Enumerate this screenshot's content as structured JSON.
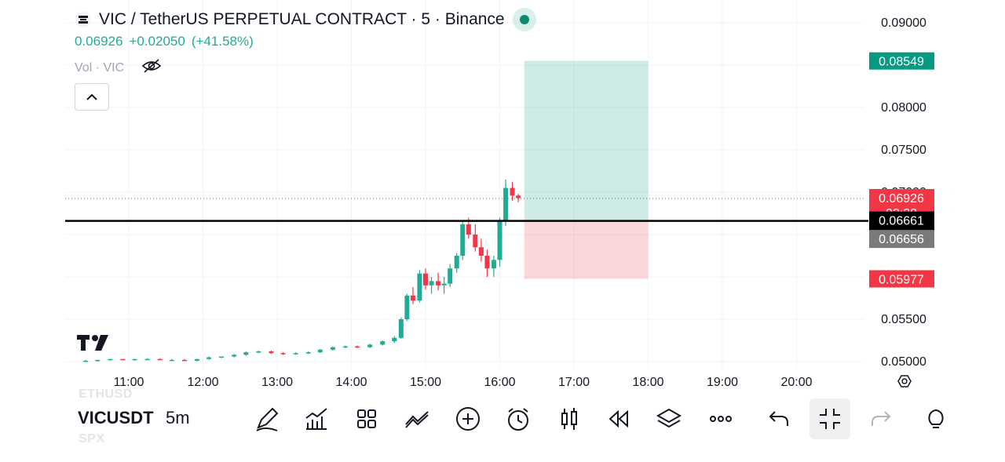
{
  "header": {
    "title": "VIC / TetherUS PERPETUAL CONTRACT · 5 · Binance",
    "last_price": "0.06926",
    "change": "+0.02050",
    "change_pct": "(+41.58%)",
    "volume_label": "Vol · VIC",
    "logo_icon": "exchange-logo-icon",
    "status_icon": "market-open-dot-icon"
  },
  "colors": {
    "up": "#22ab94",
    "down": "#f23645",
    "target": "#089981",
    "stop": "#f23645",
    "entry": "#000000"
  },
  "price_axis": {
    "ticks": [
      "0.09000",
      "0.08000",
      "0.07500",
      "0.05500",
      "0.05000"
    ],
    "hidden_tick": "0.07000",
    "labels": {
      "target": "0.08549",
      "last": "0.06926",
      "countdown": "02:38",
      "entry": "0.06661",
      "crosshair": "0.06656",
      "stop": "0.05977"
    }
  },
  "time_axis": {
    "ticks": [
      "11:00",
      "12:00",
      "13:00",
      "14:00",
      "15:00",
      "16:00",
      "17:00",
      "18:00",
      "19:00",
      "20:00"
    ],
    "settings_icon": "axis-settings-icon"
  },
  "chart_data": {
    "type": "candlestick",
    "interval": "5m",
    "ylim": [
      0.05,
      0.09
    ],
    "candles": [
      [
        10.42,
        0.0501,
        0.0502,
        0.05,
        0.0501
      ],
      [
        10.58,
        0.0501,
        0.0502,
        0.05,
        0.0502
      ],
      [
        10.75,
        0.0502,
        0.0503,
        0.0501,
        0.0503
      ],
      [
        10.92,
        0.0503,
        0.0503,
        0.0502,
        0.0502
      ],
      [
        11.08,
        0.0502,
        0.0503,
        0.0501,
        0.0503
      ],
      [
        11.25,
        0.0503,
        0.0504,
        0.0502,
        0.0503
      ],
      [
        11.42,
        0.0503,
        0.0504,
        0.0502,
        0.0502
      ],
      [
        11.58,
        0.0502,
        0.0503,
        0.0501,
        0.0502
      ],
      [
        11.75,
        0.0502,
        0.0503,
        0.0501,
        0.0501
      ],
      [
        11.92,
        0.0501,
        0.0503,
        0.05,
        0.0503
      ],
      [
        12.08,
        0.0503,
        0.0506,
        0.0502,
        0.0505
      ],
      [
        12.25,
        0.0505,
        0.0506,
        0.0504,
        0.0506
      ],
      [
        12.42,
        0.0506,
        0.0509,
        0.0505,
        0.0508
      ],
      [
        12.58,
        0.0508,
        0.0512,
        0.0507,
        0.0511
      ],
      [
        12.75,
        0.0511,
        0.0513,
        0.051,
        0.0512
      ],
      [
        12.92,
        0.0512,
        0.0513,
        0.0509,
        0.051
      ],
      [
        13.08,
        0.051,
        0.0511,
        0.0508,
        0.0509
      ],
      [
        13.25,
        0.0509,
        0.0511,
        0.0508,
        0.051
      ],
      [
        13.42,
        0.051,
        0.0512,
        0.0509,
        0.0511
      ],
      [
        13.58,
        0.0511,
        0.0515,
        0.051,
        0.0514
      ],
      [
        13.75,
        0.0514,
        0.0518,
        0.0513,
        0.0517
      ],
      [
        13.92,
        0.0517,
        0.0519,
        0.0516,
        0.0518
      ],
      [
        14.08,
        0.0518,
        0.0519,
        0.0516,
        0.0517
      ],
      [
        14.25,
        0.0517,
        0.0521,
        0.0516,
        0.052
      ],
      [
        14.42,
        0.052,
        0.0525,
        0.0519,
        0.0524
      ],
      [
        14.58,
        0.0524,
        0.053,
        0.0522,
        0.0528
      ],
      [
        14.67,
        0.0528,
        0.0552,
        0.0527,
        0.055
      ],
      [
        14.75,
        0.055,
        0.058,
        0.0548,
        0.0578
      ],
      [
        14.83,
        0.0578,
        0.0588,
        0.0568,
        0.0572
      ],
      [
        14.92,
        0.0572,
        0.0608,
        0.057,
        0.0604
      ],
      [
        15.0,
        0.0604,
        0.061,
        0.0585,
        0.059
      ],
      [
        15.08,
        0.059,
        0.06,
        0.058,
        0.0595
      ],
      [
        15.17,
        0.0595,
        0.0605,
        0.0584,
        0.059
      ],
      [
        15.25,
        0.059,
        0.06,
        0.058,
        0.0592
      ],
      [
        15.33,
        0.0592,
        0.0615,
        0.0588,
        0.061
      ],
      [
        15.42,
        0.061,
        0.0628,
        0.0605,
        0.0625
      ],
      [
        15.5,
        0.0625,
        0.0665,
        0.062,
        0.0662
      ],
      [
        15.58,
        0.0662,
        0.067,
        0.0645,
        0.065
      ],
      [
        15.67,
        0.065,
        0.0662,
        0.063,
        0.0635
      ],
      [
        15.75,
        0.0635,
        0.0645,
        0.0618,
        0.0625
      ],
      [
        15.83,
        0.0625,
        0.0632,
        0.06,
        0.061
      ],
      [
        15.92,
        0.061,
        0.0625,
        0.06,
        0.062
      ],
      [
        16.0,
        0.062,
        0.067,
        0.0612,
        0.0666
      ],
      [
        16.08,
        0.0666,
        0.0715,
        0.066,
        0.0705
      ],
      [
        16.17,
        0.0705,
        0.0712,
        0.069,
        0.0696
      ],
      [
        16.25,
        0.0696,
        0.0698,
        0.0688,
        0.0693
      ]
    ]
  },
  "position_tool": {
    "entry": 0.06661,
    "target": 0.08549,
    "stop": 0.05977,
    "start_time": 16.33,
    "end_time": 18.0
  },
  "toolbar": {
    "symbol": "VICUSDT",
    "interval": "5m",
    "ghost_top": "ETHUSD",
    "ghost_bottom": "SPX",
    "icons": [
      "pen-draw-icon",
      "indicators-icon",
      "layouts-grid-icon",
      "compare-icon",
      "add-alert-plus-icon",
      "alarm-clock-icon",
      "candle-style-icon",
      "replay-icon",
      "layers-icon",
      "more-dots-icon",
      "undo-icon",
      "fullscreen-exit-icon",
      "redo-icon",
      "lightbulb-icon"
    ]
  }
}
